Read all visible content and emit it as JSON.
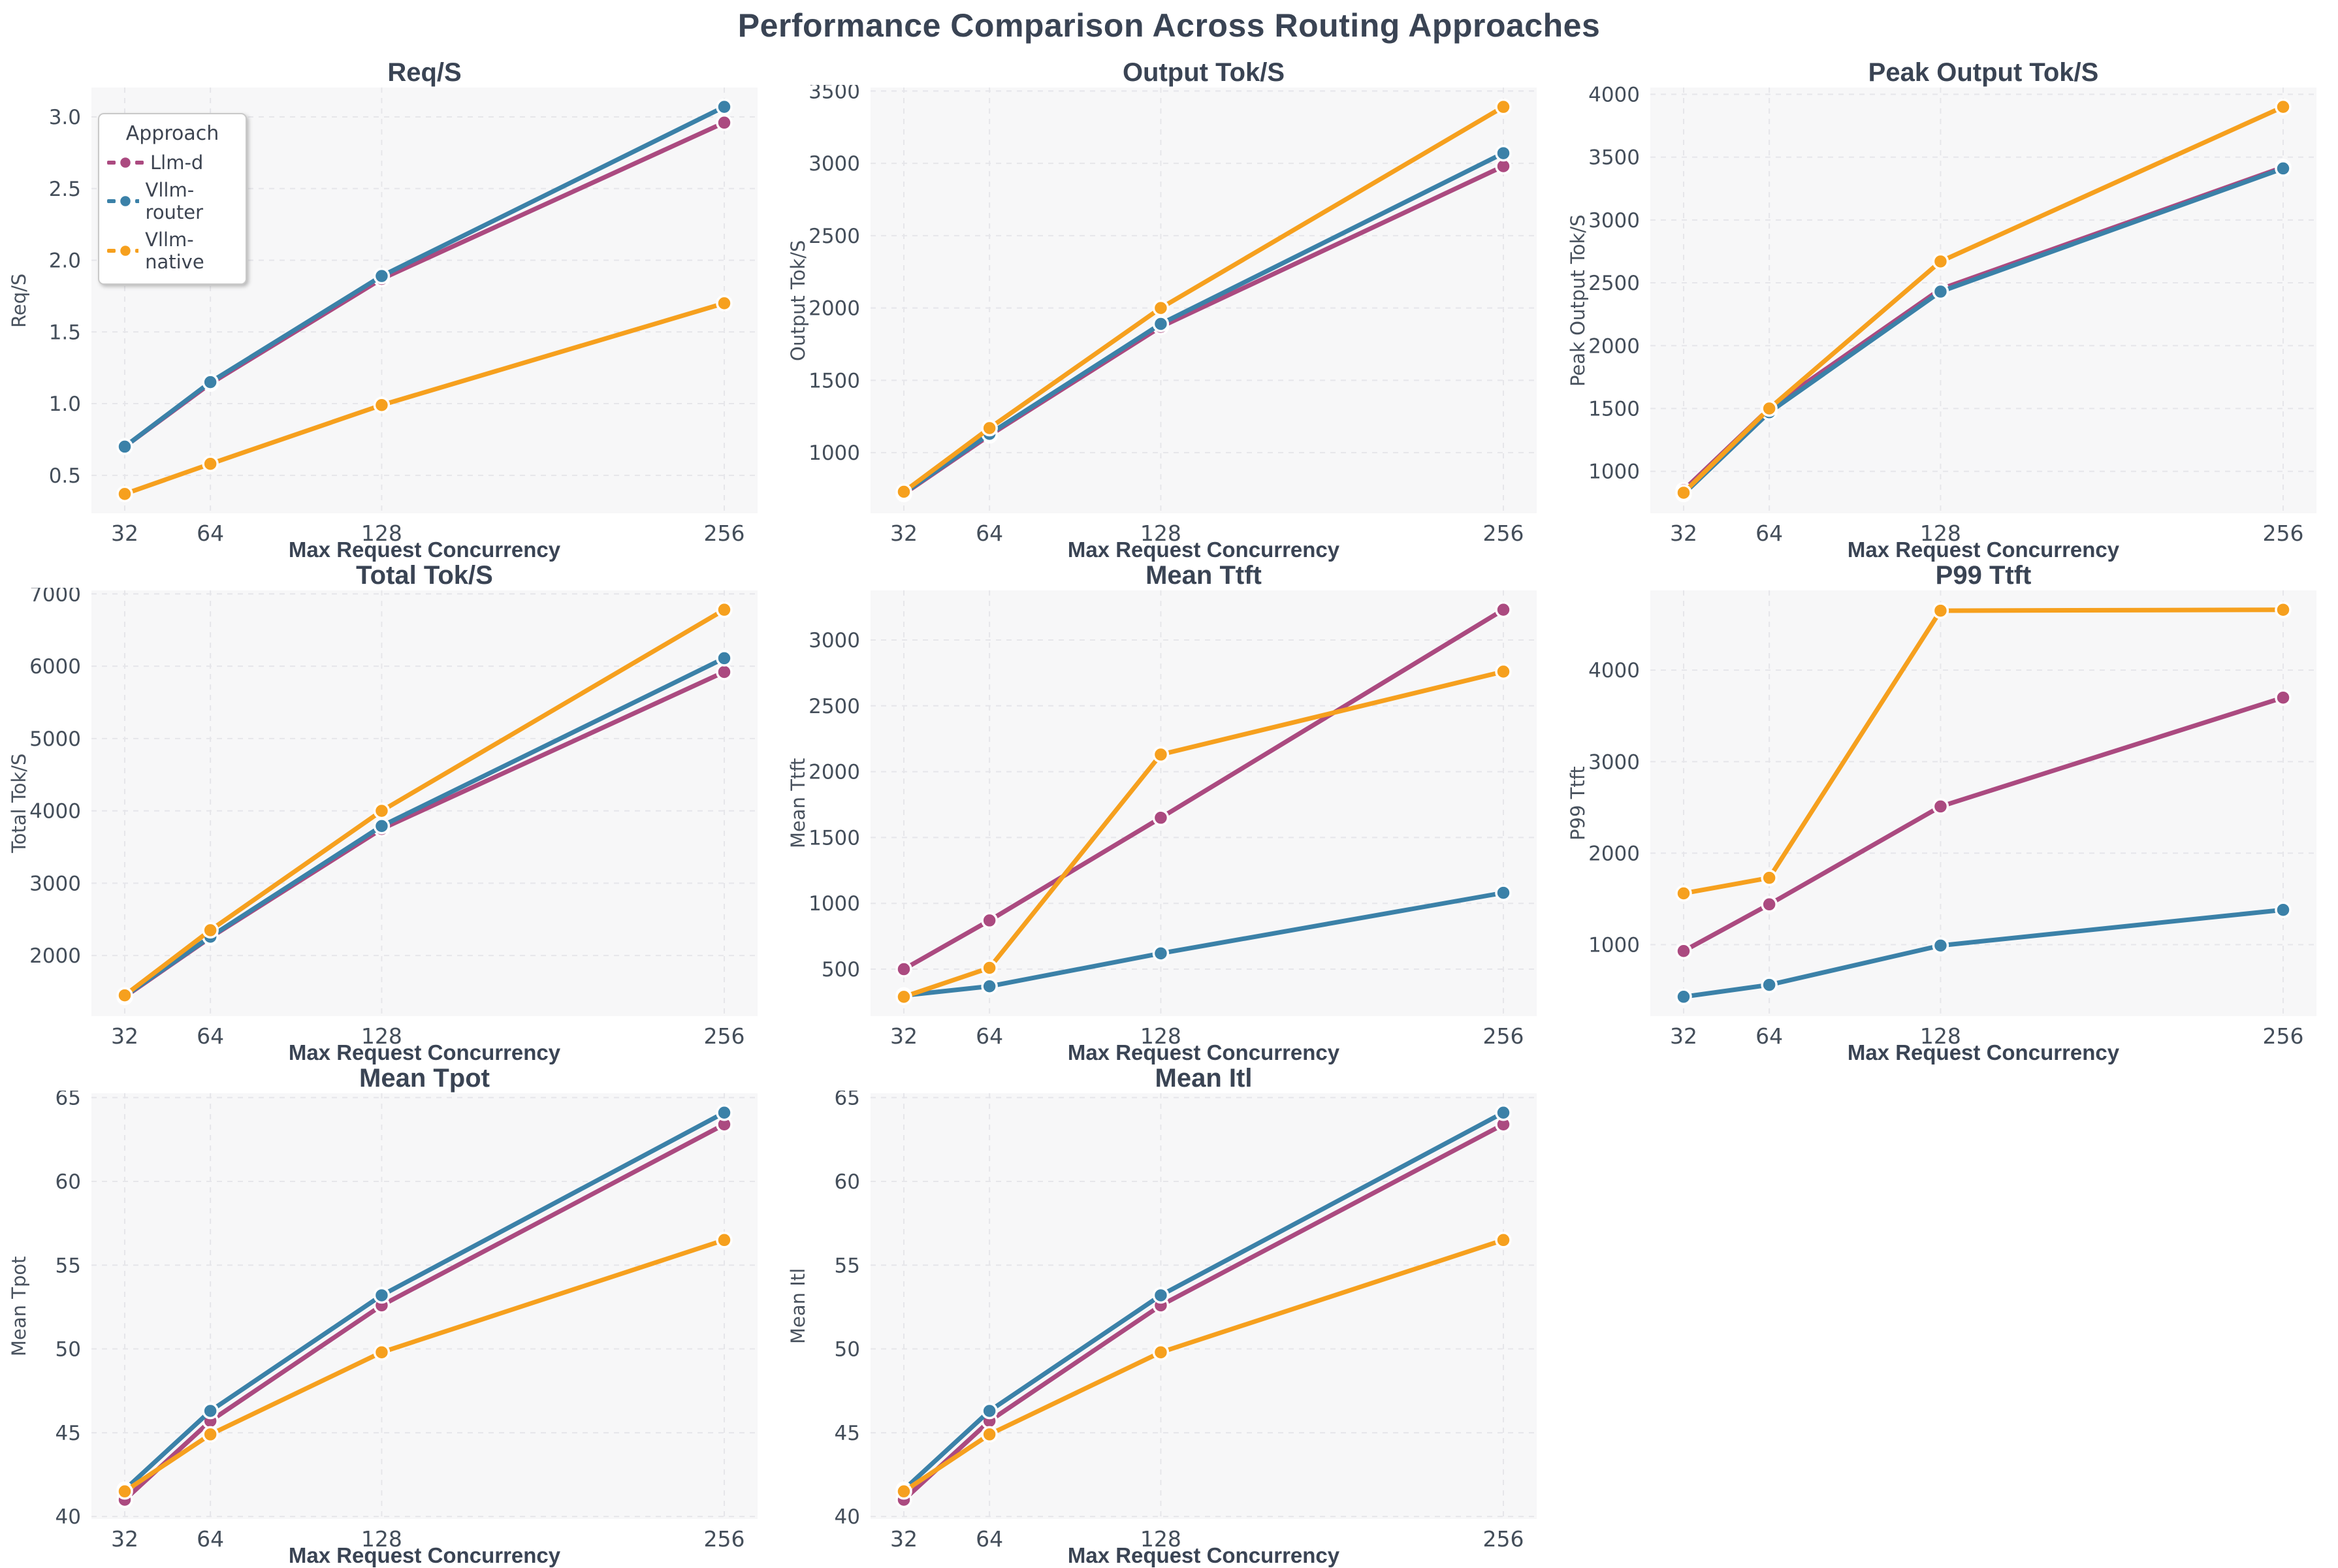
{
  "figure_title": "Performance Comparison Across Routing Approaches",
  "legend": {
    "title": "Approach",
    "items": [
      {
        "label": "Llm-d",
        "color": "#ab4a80"
      },
      {
        "label": "Vllm-router",
        "color": "#3b81a8"
      },
      {
        "label": "Vllm-native",
        "color": "#f6a01e"
      }
    ]
  },
  "chart_data": [
    {
      "type": "line",
      "title": "Req/S",
      "ylabel": "Req/S",
      "xlabel": "Max Request Concurrency",
      "x": [
        32,
        64,
        128,
        256
      ],
      "x_tick_labels": [
        "32",
        "64",
        "128",
        "256"
      ],
      "yticks": [
        0.5,
        1.0,
        1.5,
        2.0,
        2.5,
        3.0
      ],
      "ylim": [
        0.235,
        3.205
      ],
      "ydecimals": 1,
      "grid": true,
      "legend_position": "upper-left",
      "series": [
        {
          "name": "Llm-d",
          "color": "#ab4a80",
          "values": [
            0.7,
            1.14,
            1.87,
            2.96
          ]
        },
        {
          "name": "Vllm-router",
          "color": "#3b81a8",
          "values": [
            0.7,
            1.15,
            1.89,
            3.07
          ]
        },
        {
          "name": "Vllm-native",
          "color": "#f6a01e",
          "values": [
            0.37,
            0.58,
            0.99,
            1.7
          ]
        }
      ]
    },
    {
      "type": "line",
      "title": "Output Tok/S",
      "ylabel": "Output Tok/S",
      "xlabel": "Max Request Concurrency",
      "x": [
        32,
        64,
        128,
        256
      ],
      "x_tick_labels": [
        "32",
        "64",
        "128",
        "256"
      ],
      "yticks": [
        1000,
        1500,
        2000,
        2500,
        3000,
        3500
      ],
      "ylim": [
        581,
        3524
      ],
      "ydecimals": 0,
      "grid": true,
      "series": [
        {
          "name": "Llm-d",
          "color": "#ab4a80",
          "values": [
            715,
            1120,
            1870,
            2980
          ]
        },
        {
          "name": "Vllm-router",
          "color": "#3b81a8",
          "values": [
            720,
            1130,
            1890,
            3070
          ]
        },
        {
          "name": "Vllm-native",
          "color": "#f6a01e",
          "values": [
            730,
            1170,
            2000,
            3390
          ]
        }
      ]
    },
    {
      "type": "line",
      "title": "Peak Output Tok/S",
      "ylabel": "Peak Output Tok/S",
      "xlabel": "Max Request Concurrency",
      "x": [
        32,
        64,
        128,
        256
      ],
      "x_tick_labels": [
        "32",
        "64",
        "128",
        "256"
      ],
      "yticks": [
        1000,
        1500,
        2000,
        2500,
        3000,
        3500,
        4000
      ],
      "ylim": [
        666,
        4054
      ],
      "ydecimals": 0,
      "grid": true,
      "series": [
        {
          "name": "Llm-d",
          "color": "#ab4a80",
          "values": [
            850,
            1500,
            2450,
            3420
          ]
        },
        {
          "name": "Vllm-router",
          "color": "#3b81a8",
          "values": [
            820,
            1470,
            2430,
            3410
          ]
        },
        {
          "name": "Vllm-native",
          "color": "#f6a01e",
          "values": [
            830,
            1500,
            2670,
            3900
          ]
        }
      ]
    },
    {
      "type": "line",
      "title": "Total Tok/S",
      "ylabel": "Total Tok/S",
      "xlabel": "Max Request Concurrency",
      "x": [
        32,
        64,
        128,
        256
      ],
      "x_tick_labels": [
        "32",
        "64",
        "128",
        "256"
      ],
      "yticks": [
        2000,
        3000,
        4000,
        5000,
        6000,
        7000
      ],
      "ylim": [
        1162,
        7048
      ],
      "ydecimals": 0,
      "grid": true,
      "series": [
        {
          "name": "Llm-d",
          "color": "#ab4a80",
          "values": [
            1430,
            2250,
            3750,
            5920
          ]
        },
        {
          "name": "Vllm-router",
          "color": "#3b81a8",
          "values": [
            1440,
            2260,
            3790,
            6110
          ]
        },
        {
          "name": "Vllm-native",
          "color": "#f6a01e",
          "values": [
            1450,
            2350,
            4000,
            6780
          ]
        }
      ]
    },
    {
      "type": "line",
      "title": "Mean Ttft",
      "ylabel": "Mean Ttft",
      "xlabel": "Max Request Concurrency",
      "x": [
        32,
        64,
        128,
        256
      ],
      "x_tick_labels": [
        "32",
        "64",
        "128",
        "256"
      ],
      "yticks": [
        500,
        1000,
        1500,
        2000,
        2500,
        3000
      ],
      "ylim": [
        143,
        3377
      ],
      "ydecimals": 0,
      "grid": true,
      "series": [
        {
          "name": "Llm-d",
          "color": "#ab4a80",
          "values": [
            500,
            870,
            1650,
            3230
          ]
        },
        {
          "name": "Vllm-router",
          "color": "#3b81a8",
          "values": [
            300,
            370,
            620,
            1080
          ]
        },
        {
          "name": "Vllm-native",
          "color": "#f6a01e",
          "values": [
            290,
            510,
            2130,
            2760
          ]
        }
      ]
    },
    {
      "type": "line",
      "title": "P99 Ttft",
      "ylabel": "P99 Ttft",
      "xlabel": "Max Request Concurrency",
      "x": [
        32,
        64,
        128,
        256
      ],
      "x_tick_labels": [
        "32",
        "64",
        "128",
        "256"
      ],
      "yticks": [
        1000,
        2000,
        3000,
        4000
      ],
      "ylim": [
        218,
        4872
      ],
      "ydecimals": 0,
      "grid": true,
      "series": [
        {
          "name": "Llm-d",
          "color": "#ab4a80",
          "values": [
            930,
            1440,
            2510,
            3700
          ]
        },
        {
          "name": "Vllm-router",
          "color": "#3b81a8",
          "values": [
            430,
            560,
            990,
            1380
          ]
        },
        {
          "name": "Vllm-native",
          "color": "#f6a01e",
          "values": [
            1560,
            1730,
            4650,
            4660
          ]
        }
      ]
    },
    {
      "type": "line",
      "title": "Mean Tpot",
      "ylabel": "Mean Tpot",
      "xlabel": "Max Request Concurrency",
      "x": [
        32,
        64,
        128,
        256
      ],
      "x_tick_labels": [
        "32",
        "64",
        "128",
        "256"
      ],
      "yticks": [
        40,
        45,
        50,
        55,
        60,
        65
      ],
      "ylim": [
        39.85,
        65.26
      ],
      "ydecimals": 0,
      "grid": true,
      "series": [
        {
          "name": "Llm-d",
          "color": "#ab4a80",
          "values": [
            41.0,
            45.7,
            52.6,
            63.4
          ]
        },
        {
          "name": "Vllm-router",
          "color": "#3b81a8",
          "values": [
            41.6,
            46.3,
            53.2,
            64.1
          ]
        },
        {
          "name": "Vllm-native",
          "color": "#f6a01e",
          "values": [
            41.5,
            44.9,
            49.8,
            56.5
          ]
        }
      ]
    },
    {
      "type": "line",
      "title": "Mean Itl",
      "ylabel": "Mean Itl",
      "xlabel": "Max Request Concurrency",
      "x": [
        32,
        64,
        128,
        256
      ],
      "x_tick_labels": [
        "32",
        "64",
        "128",
        "256"
      ],
      "yticks": [
        40,
        45,
        50,
        55,
        60,
        65
      ],
      "ylim": [
        39.85,
        65.26
      ],
      "ydecimals": 0,
      "grid": true,
      "series": [
        {
          "name": "Llm-d",
          "color": "#ab4a80",
          "values": [
            41.0,
            45.7,
            52.6,
            63.4
          ]
        },
        {
          "name": "Vllm-router",
          "color": "#3b81a8",
          "values": [
            41.6,
            46.3,
            53.2,
            64.1
          ]
        },
        {
          "name": "Vllm-native",
          "color": "#f6a01e",
          "values": [
            41.5,
            44.9,
            49.8,
            56.5
          ]
        }
      ]
    }
  ],
  "style": {
    "plot_bg": "#f7f7f8",
    "grid_color": "#e6e6ea",
    "tick_color": "#444e5a",
    "title_color": "#3a4454"
  }
}
